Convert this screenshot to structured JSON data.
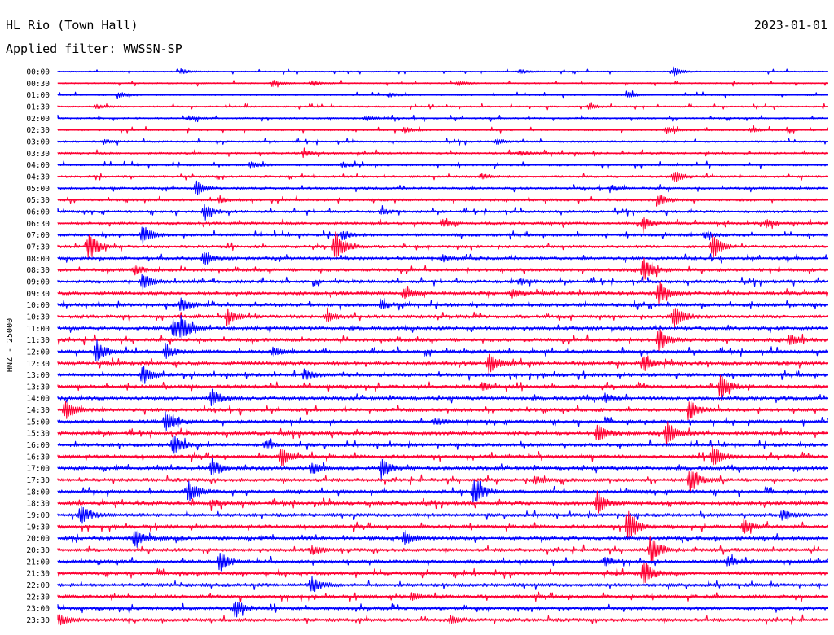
{
  "header": {
    "station": "HL Rio (Town Hall)",
    "date": "2023-01-01",
    "filter_label": "Applied filter: WWSSN-SP"
  },
  "colors": {
    "odd_trace": "#0000ff",
    "even_trace": "#ff0033",
    "text": "#000000",
    "background": "#ffffff"
  },
  "chart_data": {
    "type": "line",
    "title": "HL Rio (Town Hall)",
    "subtitle": "Applied filter: WWSSN-SP",
    "ylabel": "HNZ - 25000",
    "xlabel": "",
    "grid": false,
    "legend": "none",
    "row_labels": [
      "00:00",
      "00:30",
      "01:00",
      "01:30",
      "02:00",
      "02:30",
      "03:00",
      "03:30",
      "04:00",
      "04:30",
      "05:00",
      "05:30",
      "06:00",
      "06:30",
      "07:00",
      "07:30",
      "08:00",
      "08:30",
      "09:00",
      "09:30",
      "10:00",
      "10:30",
      "11:00",
      "11:30",
      "12:00",
      "12:30",
      "13:00",
      "13:30",
      "14:00",
      "14:30",
      "15:00",
      "15:30",
      "16:00",
      "16:30",
      "17:00",
      "17:30",
      "18:00",
      "18:30",
      "19:00",
      "19:30",
      "20:00",
      "20:30",
      "21:00",
      "21:30",
      "22:00",
      "22:30",
      "23:00",
      "23:30"
    ],
    "events": [
      [
        0,
        0.8,
        0.35
      ],
      [
        0,
        0.16,
        0.25
      ],
      [
        0,
        0.6,
        0.22
      ],
      [
        1,
        0.28,
        0.28
      ],
      [
        1,
        0.33,
        0.25
      ],
      [
        1,
        0.52,
        0.22
      ],
      [
        2,
        0.08,
        0.25
      ],
      [
        2,
        0.43,
        0.22
      ],
      [
        2,
        0.74,
        0.25
      ],
      [
        3,
        0.05,
        0.22
      ],
      [
        3,
        0.69,
        0.25
      ],
      [
        4,
        0.17,
        0.22
      ],
      [
        4,
        0.4,
        0.22
      ],
      [
        5,
        0.45,
        0.25
      ],
      [
        5,
        0.79,
        0.28
      ],
      [
        5,
        0.9,
        0.22
      ],
      [
        6,
        0.06,
        0.22
      ],
      [
        6,
        0.57,
        0.25
      ],
      [
        7,
        0.32,
        0.28
      ],
      [
        7,
        0.6,
        0.25
      ],
      [
        8,
        0.25,
        0.3
      ],
      [
        8,
        0.37,
        0.22
      ],
      [
        9,
        0.55,
        0.28
      ],
      [
        9,
        0.8,
        0.55
      ],
      [
        10,
        0.18,
        0.6
      ],
      [
        10,
        0.72,
        0.25
      ],
      [
        11,
        0.21,
        0.25
      ],
      [
        11,
        0.78,
        0.55
      ],
      [
        12,
        0.19,
        0.7
      ],
      [
        12,
        0.42,
        0.25
      ],
      [
        13,
        0.5,
        0.28
      ],
      [
        13,
        0.76,
        0.6
      ],
      [
        13,
        0.92,
        0.35
      ],
      [
        14,
        0.11,
        0.85
      ],
      [
        14,
        0.37,
        0.4
      ],
      [
        14,
        0.84,
        0.3
      ],
      [
        15,
        0.04,
        1.4
      ],
      [
        15,
        0.36,
        1.35
      ],
      [
        15,
        0.85,
        1.1
      ],
      [
        16,
        0.19,
        0.7
      ],
      [
        16,
        0.5,
        0.25
      ],
      [
        17,
        0.76,
        1.2
      ],
      [
        17,
        0.1,
        0.4
      ],
      [
        18,
        0.11,
        0.75
      ],
      [
        18,
        0.6,
        0.25
      ],
      [
        19,
        0.45,
        0.5
      ],
      [
        19,
        0.59,
        0.4
      ],
      [
        19,
        0.78,
        1.1
      ],
      [
        20,
        0.16,
        0.6
      ],
      [
        20,
        0.42,
        0.3
      ],
      [
        21,
        0.22,
        0.65
      ],
      [
        21,
        0.35,
        0.45
      ],
      [
        21,
        0.8,
        1.1
      ],
      [
        22,
        0.15,
        0.85
      ],
      [
        22,
        0.16,
        0.9
      ],
      [
        23,
        0.78,
        1.0
      ],
      [
        23,
        0.95,
        0.5
      ],
      [
        24,
        0.05,
        1.0
      ],
      [
        24,
        0.14,
        0.6
      ],
      [
        24,
        0.28,
        0.4
      ],
      [
        25,
        0.56,
        0.9
      ],
      [
        25,
        0.76,
        0.8
      ],
      [
        26,
        0.11,
        0.9
      ],
      [
        26,
        0.32,
        0.45
      ],
      [
        27,
        0.86,
        1.1
      ],
      [
        27,
        0.55,
        0.4
      ],
      [
        28,
        0.2,
        0.8
      ],
      [
        28,
        0.71,
        0.35
      ],
      [
        29,
        0.01,
        1.0
      ],
      [
        29,
        0.82,
        0.9
      ],
      [
        30,
        0.14,
        0.95
      ],
      [
        30,
        0.49,
        0.25
      ],
      [
        31,
        0.7,
        0.8
      ],
      [
        31,
        0.79,
        1.1
      ],
      [
        32,
        0.15,
        0.95
      ],
      [
        32,
        0.27,
        0.4
      ],
      [
        33,
        0.29,
        0.8
      ],
      [
        33,
        0.85,
        0.95
      ],
      [
        34,
        0.2,
        0.8
      ],
      [
        34,
        0.33,
        0.55
      ],
      [
        34,
        0.42,
        0.9
      ],
      [
        35,
        0.82,
        1.2
      ],
      [
        35,
        0.62,
        0.35
      ],
      [
        36,
        0.17,
        0.95
      ],
      [
        36,
        0.54,
        1.4
      ],
      [
        37,
        0.7,
        1.0
      ],
      [
        37,
        0.2,
        0.35
      ],
      [
        38,
        0.03,
        0.85
      ],
      [
        38,
        0.94,
        0.5
      ],
      [
        39,
        0.74,
        1.5
      ],
      [
        39,
        0.89,
        0.6
      ],
      [
        40,
        0.1,
        0.9
      ],
      [
        40,
        0.45,
        0.6
      ],
      [
        41,
        0.77,
        1.3
      ],
      [
        41,
        0.33,
        0.4
      ],
      [
        42,
        0.21,
        0.9
      ],
      [
        42,
        0.71,
        0.4
      ],
      [
        42,
        0.87,
        0.4
      ],
      [
        43,
        0.76,
        1.2
      ],
      [
        44,
        0.33,
        0.7
      ],
      [
        45,
        0.46,
        0.3
      ],
      [
        46,
        0.23,
        0.8
      ],
      [
        47,
        0.0,
        0.6
      ],
      [
        47,
        0.51,
        0.35
      ]
    ]
  }
}
